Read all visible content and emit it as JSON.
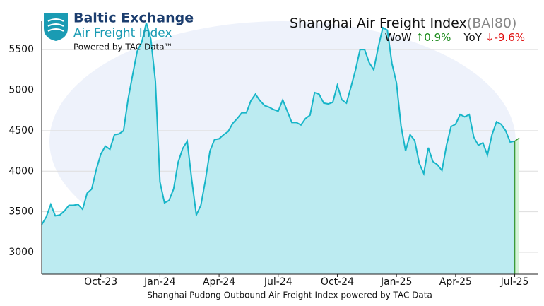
{
  "header": {
    "logo_title": "Baltic Exchange",
    "logo_subtitle": "Air Freight Index",
    "powered_by": "Powered by TAC Data™"
  },
  "chart_data": {
    "type": "area",
    "title": "Shanghai Air Freight Index",
    "title_code": "(BAI80)",
    "stats": [
      {
        "label": "WoW",
        "value": "↑0.9%",
        "color": "#1a8a1a"
      },
      {
        "label": "YoY",
        "value": "↓-9.6%",
        "color": "#e01010"
      }
    ],
    "xlabel": "Shanghai Pudong Outbound Air Freight Index powered by TAC Data",
    "categories": [
      null,
      null,
      null,
      null,
      null,
      null,
      null,
      null,
      null,
      null,
      null,
      null,
      null,
      "Oct-23",
      null,
      null,
      null,
      null,
      null,
      null,
      null,
      null,
      null,
      null,
      null,
      null,
      "Jan-24",
      null,
      null,
      null,
      null,
      null,
      null,
      null,
      null,
      null,
      null,
      null,
      null,
      "Apr-24",
      null,
      null,
      null,
      null,
      null,
      null,
      null,
      null,
      null,
      null,
      null,
      null,
      "Jul-24",
      null,
      null,
      null,
      null,
      null,
      null,
      null,
      null,
      null,
      null,
      null,
      null,
      "Oct-24",
      null,
      null,
      null,
      null,
      null,
      null,
      null,
      null,
      null,
      null,
      null,
      null,
      "Jan-25",
      null,
      null,
      null,
      null,
      null,
      null,
      null,
      null,
      null,
      null,
      null,
      null,
      "Apr-25",
      null,
      null,
      null,
      null,
      null,
      null,
      null,
      null,
      null,
      null,
      null,
      null,
      "Jul-25",
      null
    ],
    "values": [
      3340,
      3435,
      3590,
      3450,
      3460,
      3510,
      3580,
      3580,
      3590,
      3530,
      3730,
      3780,
      4020,
      4210,
      4310,
      4270,
      4450,
      4460,
      4500,
      4890,
      5190,
      5480,
      5590,
      5830,
      5630,
      5110,
      3870,
      3610,
      3640,
      3780,
      4110,
      4280,
      4370,
      3890,
      3460,
      3580,
      3890,
      4250,
      4390,
      4400,
      4450,
      4490,
      4590,
      4650,
      4720,
      4720,
      4870,
      4950,
      4870,
      4810,
      4790,
      4760,
      4740,
      4880,
      4740,
      4600,
      4600,
      4570,
      4650,
      4690,
      4970,
      4950,
      4840,
      4830,
      4850,
      5060,
      4880,
      4840,
      5040,
      5250,
      5500,
      5500,
      5340,
      5250,
      5530,
      5770,
      5740,
      5330,
      5090,
      4560,
      4250,
      4450,
      4380,
      4100,
      3970,
      4290,
      4120,
      4080,
      4010,
      4320,
      4550,
      4580,
      4700,
      4670,
      4700,
      4420,
      4320,
      4350,
      4200,
      4450,
      4610,
      4580,
      4500,
      4360,
      4370,
      4410
    ],
    "color": "#17b5c8",
    "fill": "#bcebf1",
    "latest_color": "#3a9a3a",
    "latest_fill": "#d5f3d8",
    "ylim": [
      2730,
      5850
    ],
    "yticks": [
      3000,
      3500,
      4000,
      4500,
      5000,
      5500
    ],
    "grid": true
  }
}
